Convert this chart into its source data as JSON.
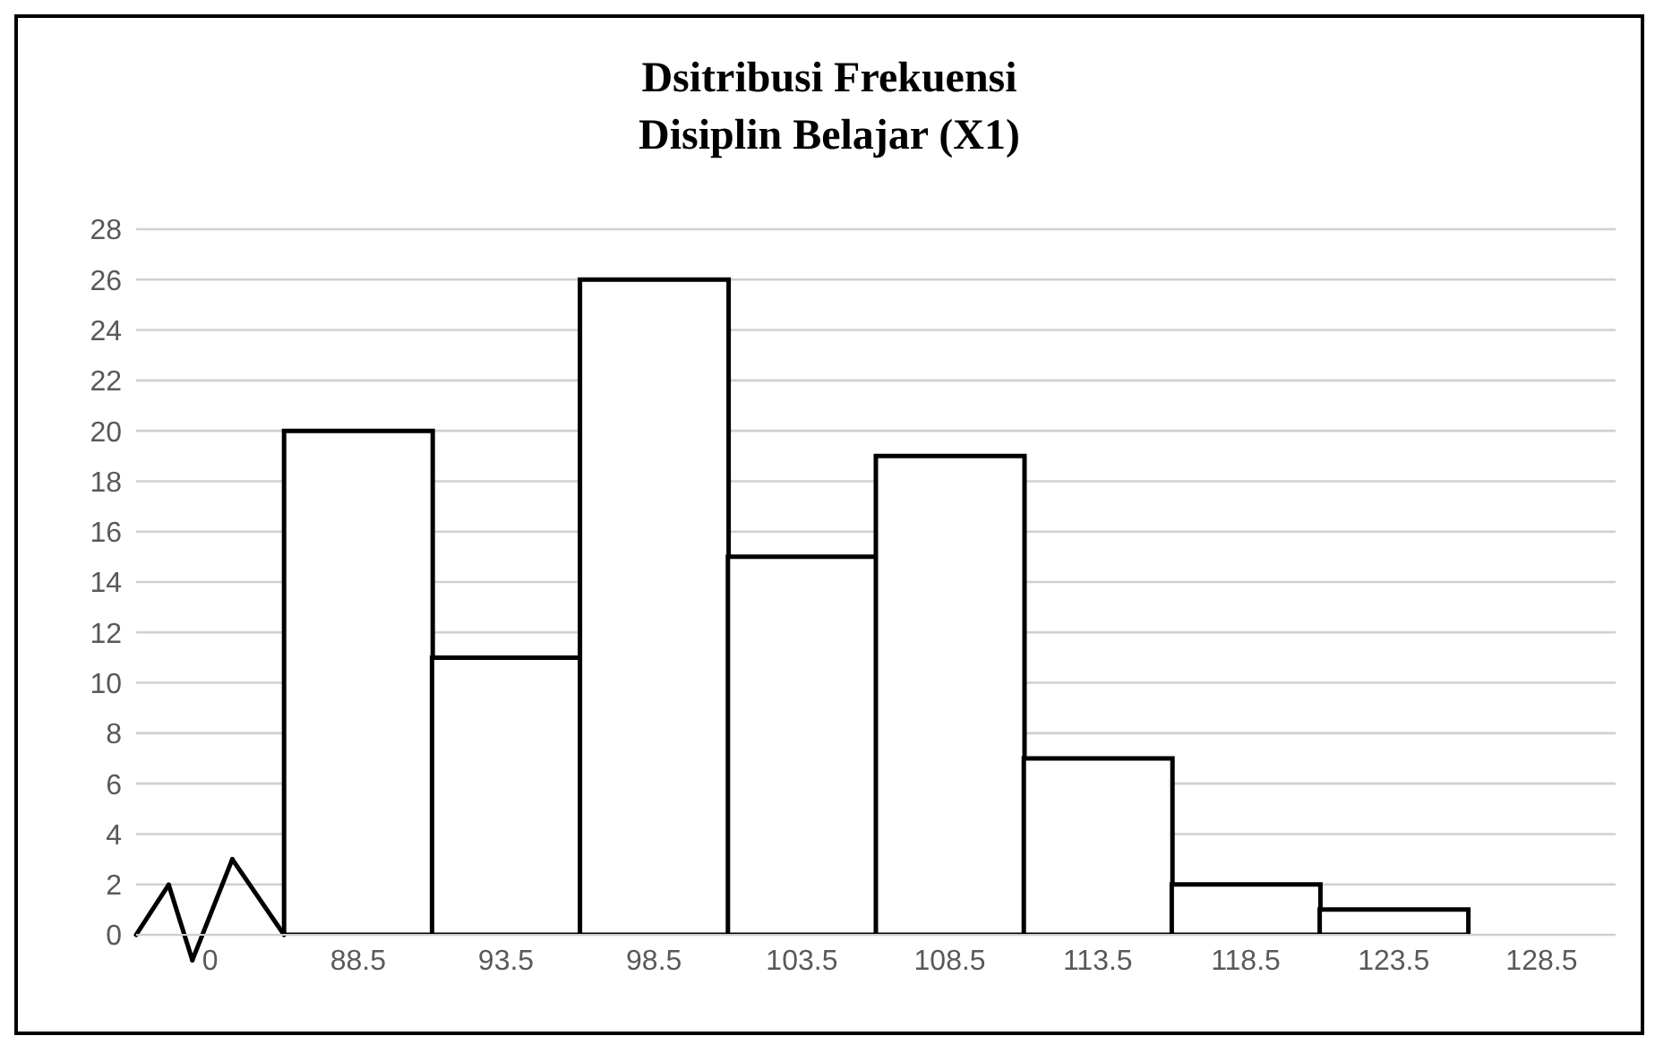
{
  "chart_data": {
    "type": "bar",
    "title": "Dsitribusi Frekuensi\nDisiplin Belajar (X1)",
    "categories": [
      "0",
      "88.5",
      "93.5",
      "98.5",
      "103.5",
      "108.5",
      "113.5",
      "118.5",
      "123.5",
      "128.5"
    ],
    "values": [
      null,
      20,
      11,
      26,
      15,
      19,
      7,
      2,
      1,
      null
    ],
    "color": "#ffffff",
    "ylim": [
      0,
      28
    ],
    "yticks": [
      0,
      2,
      4,
      6,
      8,
      10,
      12,
      14,
      16,
      18,
      20,
      22,
      24,
      26,
      28
    ],
    "grid": "y"
  }
}
